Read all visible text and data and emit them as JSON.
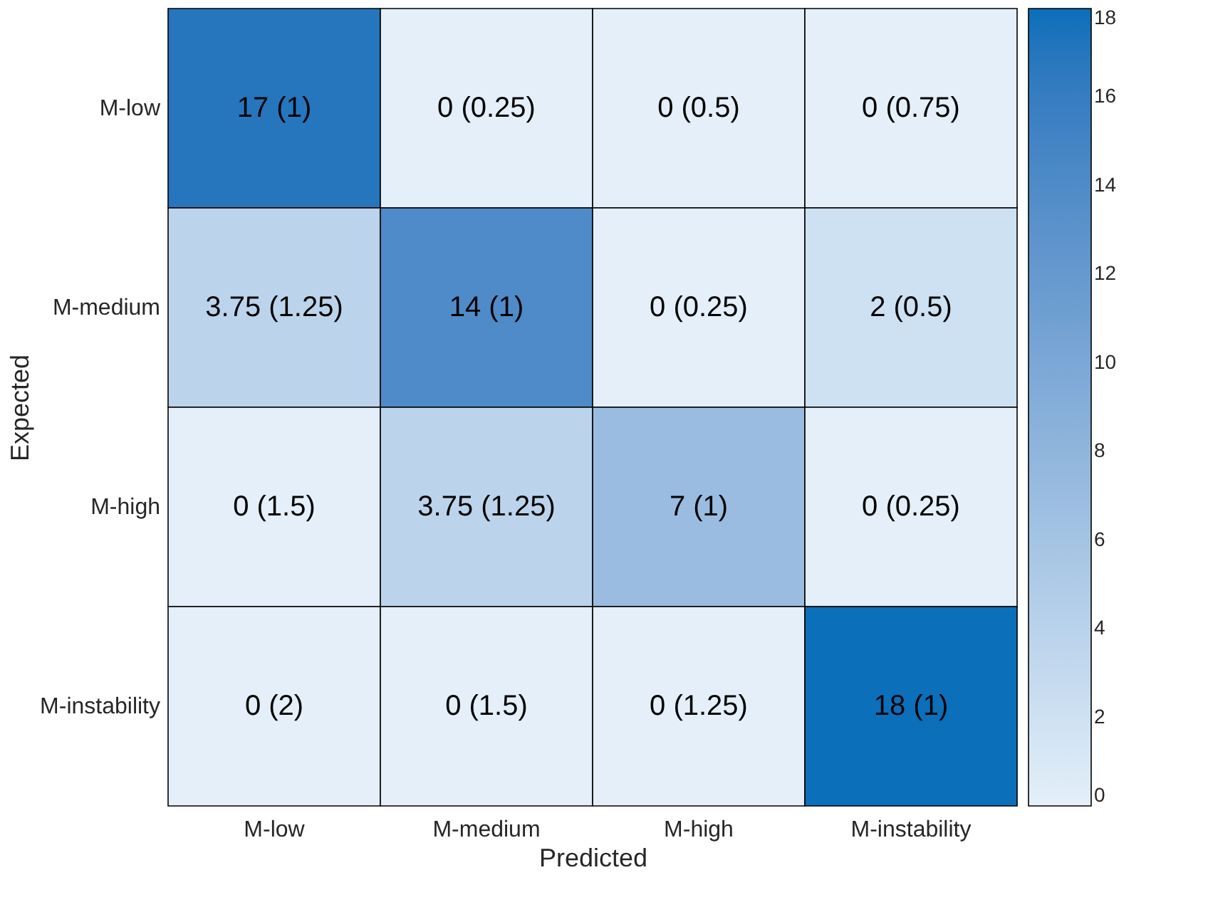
{
  "chart_data": {
    "type": "heatmap",
    "xlabel": "Predicted",
    "ylabel": "Expected",
    "categories": [
      "M-low",
      "M-medium",
      "M-high",
      "M-instability"
    ],
    "y_categories": [
      "M-low",
      "M-medium",
      "M-high",
      "M-instability"
    ],
    "cells": [
      [
        17,
        0,
        0,
        0
      ],
      [
        3.75,
        14,
        0,
        2
      ],
      [
        0,
        3.75,
        7,
        0
      ],
      [
        0,
        0,
        0,
        18
      ]
    ],
    "cell_labels": [
      [
        "17 (1)",
        "0 (0.25)",
        "0 (0.5)",
        "0 (0.75)"
      ],
      [
        "3.75 (1.25)",
        "14 (1)",
        "0 (0.25)",
        "2 (0.5)"
      ],
      [
        "0 (1.5)",
        "3.75 (1.25)",
        "7 (1)",
        "0 (0.25)"
      ],
      [
        "0 (2)",
        "0 (1.5)",
        "0 (1.25)",
        "18 (1)"
      ]
    ],
    "clim": [
      0,
      18
    ],
    "cticks": [
      0,
      2,
      4,
      6,
      8,
      10,
      12,
      14,
      16,
      18
    ]
  }
}
